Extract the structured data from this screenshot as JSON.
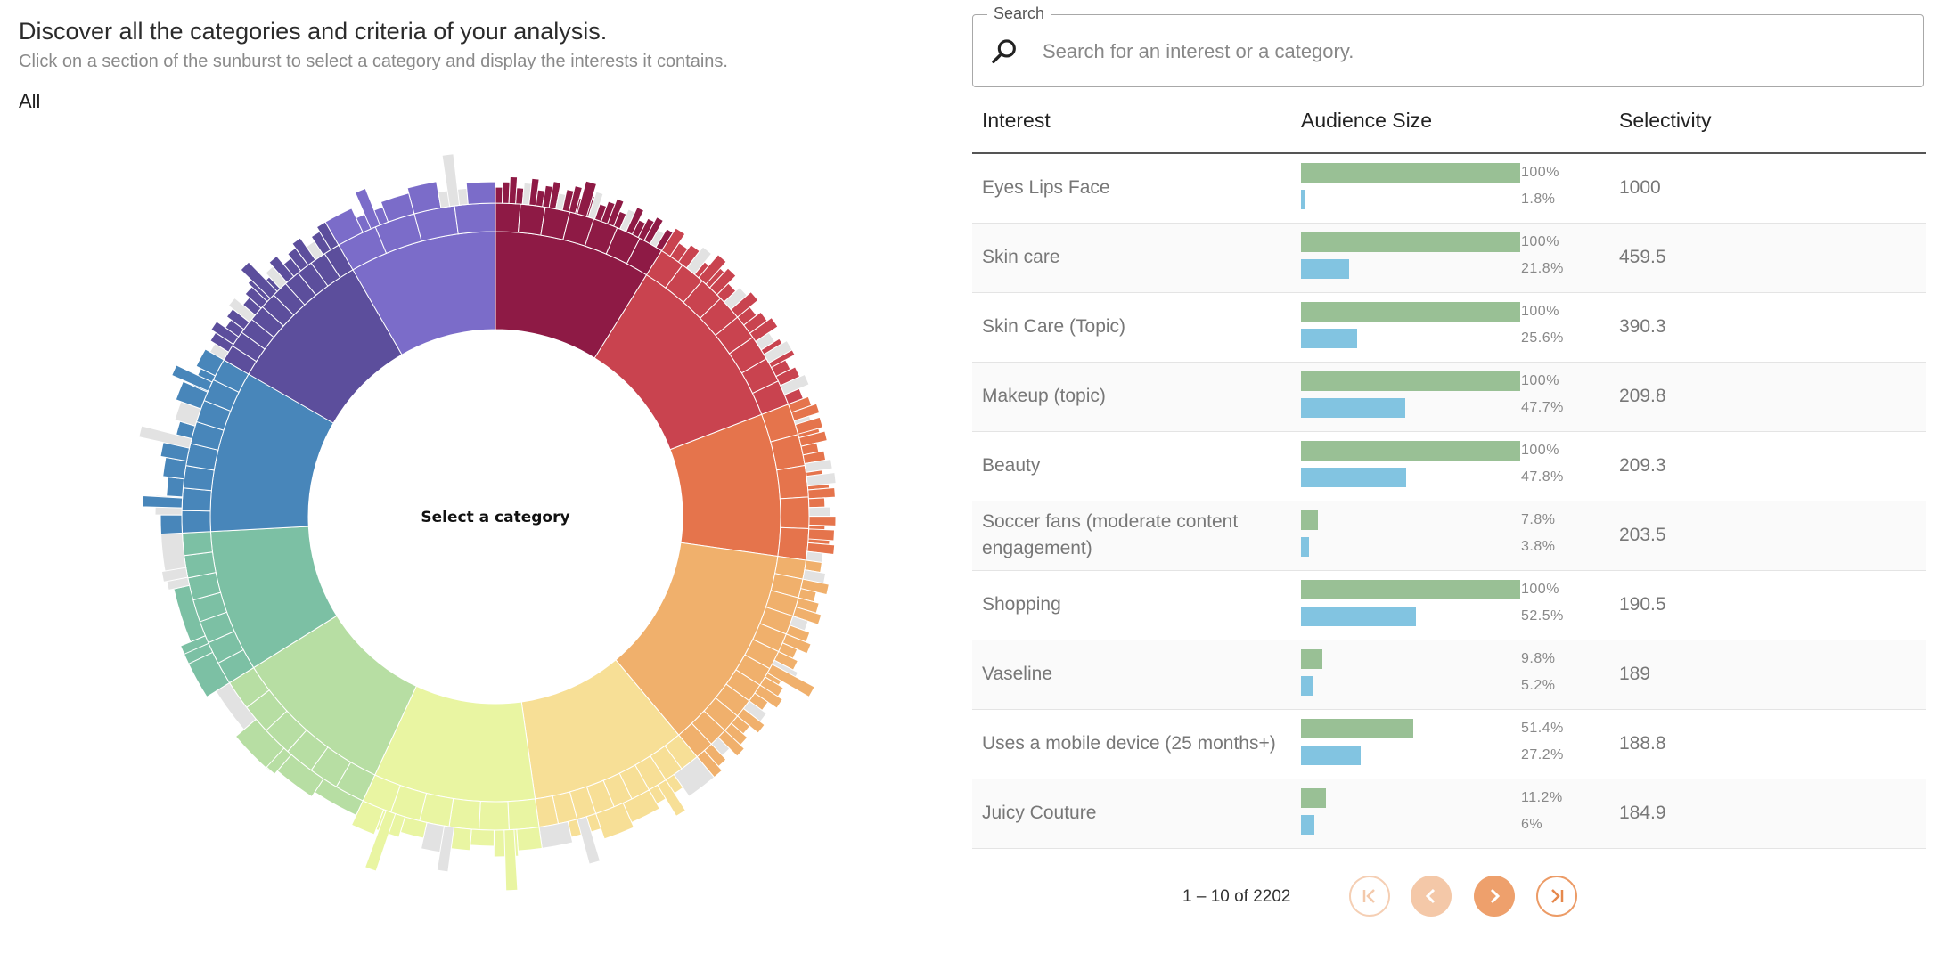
{
  "header": {
    "title": "Discover all the categories and criteria of your analysis.",
    "subtitle": "Click on a section of the sunburst to select a category and display the interests it contains.",
    "breadcrumb": "All"
  },
  "sunburst": {
    "center_label": "Select a category",
    "palette": [
      "#8e1a45",
      "#c9434f",
      "#e5744c",
      "#f0b06c",
      "#f7df96",
      "#e9f5a2",
      "#b7dea3",
      "#7cc0a4",
      "#4886ba",
      "#5c4e9c",
      "#7b6cc9"
    ],
    "rest_color": "#e2e2e2"
  },
  "search": {
    "legend": "Search",
    "placeholder": "Search for an interest or a category.",
    "value": ""
  },
  "table": {
    "headers": {
      "interest": "Interest",
      "audience": "Audience Size",
      "selectivity": "Selectivity"
    },
    "rows": [
      {
        "interest": "Eyes Lips Face",
        "green_pct": 100,
        "green_label": "100%",
        "blue_pct": 1.8,
        "blue_label": "1.8%",
        "selectivity": "1000"
      },
      {
        "interest": "Skin care",
        "green_pct": 100,
        "green_label": "100%",
        "blue_pct": 21.8,
        "blue_label": "21.8%",
        "selectivity": "459.5"
      },
      {
        "interest": "Skin Care (Topic)",
        "green_pct": 100,
        "green_label": "100%",
        "blue_pct": 25.6,
        "blue_label": "25.6%",
        "selectivity": "390.3"
      },
      {
        "interest": "Makeup (topic)",
        "green_pct": 100,
        "green_label": "100%",
        "blue_pct": 47.7,
        "blue_label": "47.7%",
        "selectivity": "209.8"
      },
      {
        "interest": "Beauty",
        "green_pct": 100,
        "green_label": "100%",
        "blue_pct": 47.8,
        "blue_label": "47.8%",
        "selectivity": "209.3"
      },
      {
        "interest": "Soccer fans (moderate content engagement)",
        "green_pct": 7.8,
        "green_label": "7.8%",
        "blue_pct": 3.8,
        "blue_label": "3.8%",
        "selectivity": "203.5"
      },
      {
        "interest": "Shopping",
        "green_pct": 100,
        "green_label": "100%",
        "blue_pct": 52.5,
        "blue_label": "52.5%",
        "selectivity": "190.5"
      },
      {
        "interest": "Vaseline",
        "green_pct": 9.8,
        "green_label": "9.8%",
        "blue_pct": 5.2,
        "blue_label": "5.2%",
        "selectivity": "189"
      },
      {
        "interest": "Uses a mobile device (25 months+)",
        "green_pct": 51.4,
        "green_label": "51.4%",
        "blue_pct": 27.2,
        "blue_label": "27.2%",
        "selectivity": "188.8"
      },
      {
        "interest": "Juicy Couture",
        "green_pct": 11.2,
        "green_label": "11.2%",
        "blue_pct": 6,
        "blue_label": "6%",
        "selectivity": "184.9"
      }
    ]
  },
  "paginator": {
    "range_label": "1 – 10 of 2202",
    "icons": [
      "first-page-icon",
      "chevron-left-icon",
      "chevron-right-icon",
      "last-page-icon"
    ]
  }
}
